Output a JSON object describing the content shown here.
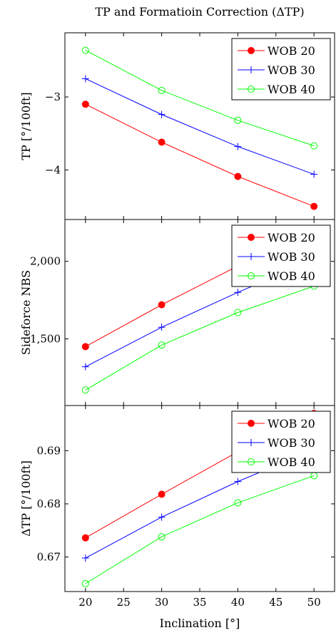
{
  "title": "TP and Formatioin Correction (ΔTP)",
  "xlabel": "Inclination [°]",
  "x_ticks": [
    "20",
    "25",
    "30",
    "35",
    "40",
    "45",
    "50"
  ],
  "colors": {
    "wob20": "#ff0000",
    "wob30": "#0000ff",
    "wob40": "#00ff00"
  },
  "chart_data": [
    {
      "type": "line",
      "ylabel": "TP [°/100ft]",
      "x": [
        20,
        30,
        40,
        50
      ],
      "ylim": [
        -4.68,
        -2.12
      ],
      "y_ticks": [
        {
          "v": -3,
          "label": "−3"
        },
        {
          "v": -4,
          "label": "−4"
        }
      ],
      "legend": "top-right",
      "series": [
        {
          "name": "WOB 20",
          "marker": "filled-circle",
          "values": [
            -3.1,
            -3.62,
            -4.09,
            -4.5
          ]
        },
        {
          "name": "WOB 30",
          "marker": "plus",
          "values": [
            -2.75,
            -3.24,
            -3.68,
            -4.06
          ]
        },
        {
          "name": "WOB 40",
          "marker": "open-circle",
          "values": [
            -2.36,
            -2.91,
            -3.32,
            -3.67
          ]
        }
      ]
    },
    {
      "type": "line",
      "ylabel": "Sideforce NBS",
      "x": [
        20,
        30,
        40,
        50
      ],
      "ylim": [
        1070,
        2270
      ],
      "y_ticks": [
        {
          "v": 1500,
          "label": "1,500"
        },
        {
          "v": 2000,
          "label": "2,000"
        }
      ],
      "legend": "top-right",
      "series": [
        {
          "name": "WOB 20",
          "marker": "filled-circle",
          "values": [
            1450,
            1720,
            1970,
            2180
          ]
        },
        {
          "name": "WOB 30",
          "marker": "plus",
          "values": [
            1320,
            1575,
            1800,
            2010
          ]
        },
        {
          "name": "WOB 40",
          "marker": "open-circle",
          "values": [
            1170,
            1460,
            1670,
            1840
          ]
        }
      ]
    },
    {
      "type": "line",
      "ylabel": "ΔTP [°/100ft]",
      "x": [
        20,
        30,
        40,
        50
      ],
      "ylim": [
        0.6635,
        0.6985
      ],
      "y_ticks": [
        {
          "v": 0.67,
          "label": "0.67"
        },
        {
          "v": 0.68,
          "label": "0.68"
        },
        {
          "v": 0.69,
          "label": "0.69"
        }
      ],
      "legend": "top-right",
      "series": [
        {
          "name": "WOB 20",
          "marker": "filled-circle",
          "values": [
            0.6736,
            0.6818,
            0.6898,
            0.697
          ]
        },
        {
          "name": "WOB 30",
          "marker": "plus",
          "values": [
            0.6698,
            0.6775,
            0.6842,
            0.6902
          ]
        },
        {
          "name": "WOB 40",
          "marker": "open-circle",
          "values": [
            0.665,
            0.6738,
            0.6802,
            0.6853
          ]
        }
      ]
    }
  ]
}
